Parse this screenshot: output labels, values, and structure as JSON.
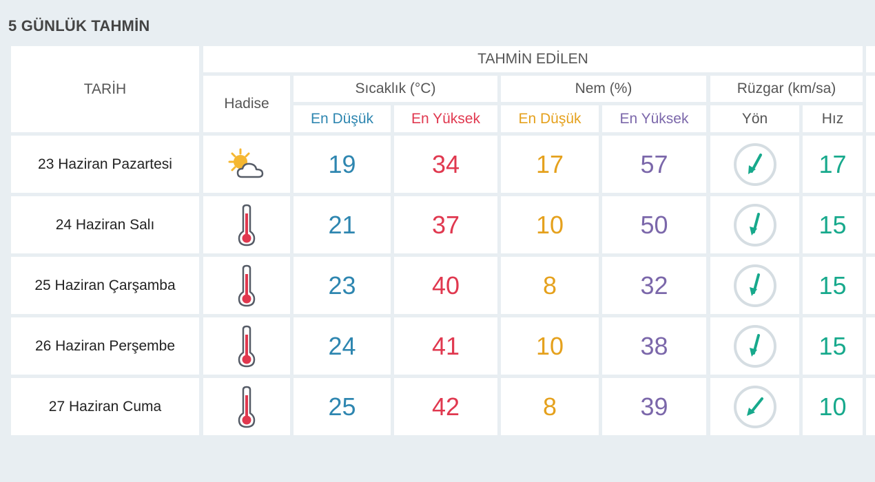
{
  "title": "5 GÜNLÜK TAHMİN",
  "headers": {
    "date": "TARİH",
    "forecast": "TAHMİN EDİLEN",
    "event": "Hadise",
    "temperature": "Sıcaklık (°C)",
    "humidity": "Nem (%)",
    "wind": "Rüzgar (km/sa)",
    "temp_low": "En Düşük",
    "temp_high": "En Yüksek",
    "hum_low": "En Düşük",
    "hum_high": "En Yüksek",
    "wind_dir": "Yön",
    "wind_speed": "Hız"
  },
  "colors": {
    "temp_low": "#2e86b0",
    "temp_high": "#e0384f",
    "hum_low": "#e5a11d",
    "hum_high": "#7b67aa",
    "wind": "#17a98c"
  },
  "rows": [
    {
      "date": "23 Haziran Pazartesi",
      "icon": "partly-cloudy-sun-icon",
      "temp_low": "19",
      "temp_high": "34",
      "hum_low": "17",
      "hum_high": "57",
      "wind_dir_icon": "wind-direction-arrow-icon",
      "wind_speed": "17"
    },
    {
      "date": "24 Haziran Salı",
      "icon": "thermometer-hot-icon",
      "temp_low": "21",
      "temp_high": "37",
      "hum_low": "10",
      "hum_high": "50",
      "wind_dir_icon": "wind-direction-arrow-icon",
      "wind_speed": "15"
    },
    {
      "date": "25 Haziran Çarşamba",
      "icon": "thermometer-hot-icon",
      "temp_low": "23",
      "temp_high": "40",
      "hum_low": "8",
      "hum_high": "32",
      "wind_dir_icon": "wind-direction-arrow-icon",
      "wind_speed": "15"
    },
    {
      "date": "26 Haziran Perşembe",
      "icon": "thermometer-hot-icon",
      "temp_low": "24",
      "temp_high": "41",
      "hum_low": "10",
      "hum_high": "38",
      "wind_dir_icon": "wind-direction-arrow-icon",
      "wind_speed": "15"
    },
    {
      "date": "27 Haziran Cuma",
      "icon": "thermometer-hot-icon",
      "temp_low": "25",
      "temp_high": "42",
      "hum_low": "8",
      "hum_high": "39",
      "wind_dir_icon": "wind-direction-arrow-icon",
      "wind_speed": "10"
    }
  ]
}
